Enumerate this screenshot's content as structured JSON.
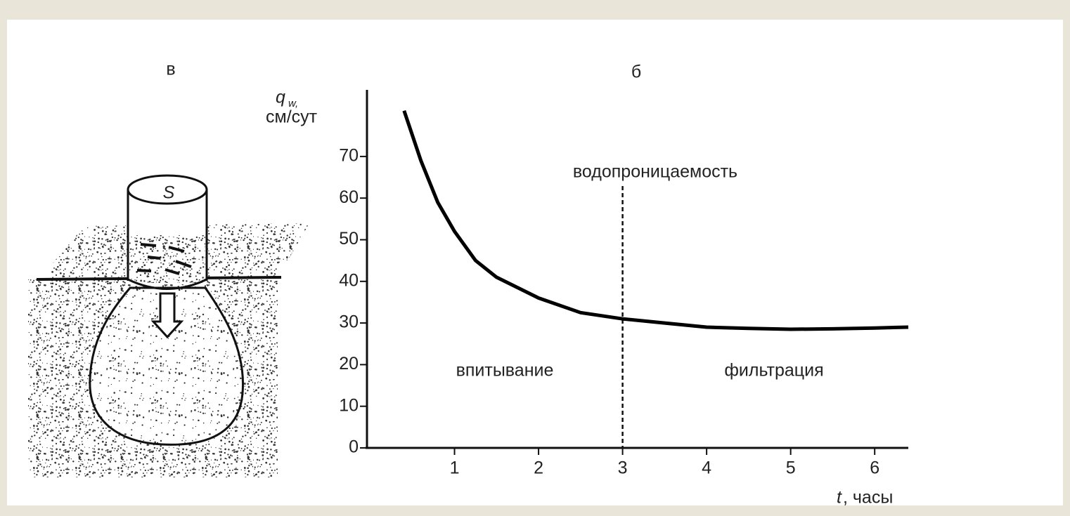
{
  "diagram": {
    "label": "в",
    "cylinder_label": "S"
  },
  "chart_data": {
    "type": "line",
    "label": "б",
    "ylabel": {
      "symbol": "q",
      "subscript": "w,",
      "unit": "см/сут"
    },
    "xlabel": {
      "symbol": "t",
      "unit": ", часы"
    },
    "x": [
      0.4,
      0.6,
      0.8,
      1.0,
      1.25,
      1.5,
      2.0,
      2.5,
      3.0,
      3.5,
      4.0,
      4.5,
      5.0,
      5.5,
      6.0,
      6.4
    ],
    "values": [
      81,
      69,
      59,
      52,
      45,
      41,
      36,
      32.5,
      31,
      30,
      29,
      28.7,
      28.5,
      28.6,
      28.8,
      29
    ],
    "color": "#000000",
    "xlim": [
      0,
      6.4
    ],
    "ylim": [
      0,
      86
    ],
    "xticks": [
      1,
      2,
      3,
      4,
      5,
      6
    ],
    "yticks": [
      0,
      10,
      20,
      30,
      40,
      50,
      60,
      70
    ],
    "divider": {
      "x": 3
    },
    "annotations": [
      "водопроницаемость",
      "впитывание",
      "фильтрация"
    ]
  }
}
